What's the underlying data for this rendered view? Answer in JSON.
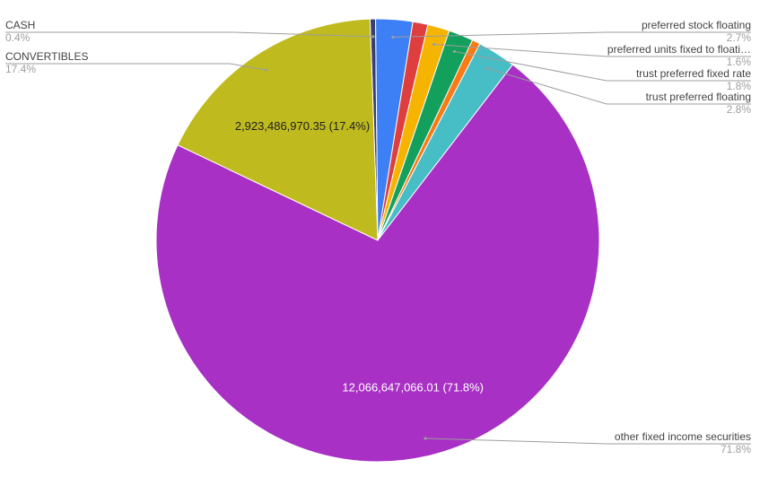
{
  "chart_data": {
    "type": "pie",
    "title": "",
    "start_angle_deg": -2,
    "slices": [
      {
        "label": "CASH",
        "value": 0.4,
        "color": "#3a3f73"
      },
      {
        "label": "preferred stock floating",
        "value": 2.7,
        "color": "#3d7ff5"
      },
      {
        "label": "",
        "value": 1.1,
        "color": "#de3e3e"
      },
      {
        "label": "preferred units fixed to floati…",
        "value": 1.6,
        "color": "#f5b400"
      },
      {
        "label": "trust preferred fixed rate",
        "value": 1.8,
        "color": "#12a05c"
      },
      {
        "label": "",
        "value": 0.6,
        "color": "#fb7a14"
      },
      {
        "label": "trust preferred floating",
        "value": 2.8,
        "color": "#47bdc6"
      },
      {
        "label": "other fixed income securities",
        "value": 71.8,
        "color": "#a830c4",
        "data_label": "12,066,647,066.01 (71.8%)"
      },
      {
        "label": "CONVERTIBLES",
        "value": 17.4,
        "color": "#bfba1e",
        "data_label": "2,923,486,970.35 (17.4%)"
      }
    ],
    "legend_callouts": [
      {
        "label": "CASH",
        "pct": "0.4%",
        "side": "left"
      },
      {
        "label": "CONVERTIBLES",
        "pct": "17.4%",
        "side": "left"
      },
      {
        "label": "preferred stock floating",
        "pct": "2.7%",
        "side": "right"
      },
      {
        "label": "preferred units fixed to floati…",
        "pct": "1.6%",
        "side": "right"
      },
      {
        "label": "trust preferred fixed rate",
        "pct": "1.8%",
        "side": "right"
      },
      {
        "label": "trust preferred floating",
        "pct": "2.8%",
        "side": "right"
      },
      {
        "label": "other fixed income securities",
        "pct": "71.8%",
        "side": "right"
      }
    ],
    "legend_placement": "callouts"
  }
}
